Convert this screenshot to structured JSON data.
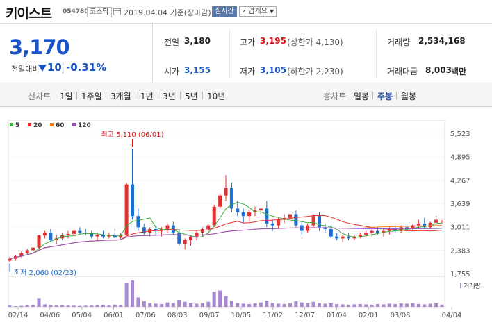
{
  "header": {
    "name": "키이스트",
    "code": "054780",
    "market": "코스닥",
    "date": "2019.04.04 기준(장마감)",
    "realtime": "실시간",
    "overview": "기업개요"
  },
  "summary": {
    "price": "3,170",
    "change_label": "전일대비",
    "change": "10",
    "change_pct": "-0.31%",
    "prev_label": "전일",
    "prev": "3,180",
    "open_label": "시가",
    "open": "3,155",
    "high_label": "고가",
    "high": "3,195",
    "upper_limit": "(상한가 4,130)",
    "low_label": "저가",
    "low": "3,105",
    "lower_limit": "(하한가 2,230)",
    "volume_label": "거래량",
    "volume": "2,534,168",
    "amount_label": "거래대금",
    "amount": "8,003",
    "amount_unit": "백만"
  },
  "toolbar": {
    "line_label": "선차트",
    "periods": [
      "1일",
      "1주일",
      "3개월",
      "1년",
      "3년",
      "5년",
      "10년"
    ],
    "candle_label": "봉차트",
    "candles": [
      "일봉",
      "주봉",
      "월봉"
    ],
    "active_candle": "주봉"
  },
  "colors": {
    "up": "#e03030",
    "down": "#1f6fd0",
    "ma5": "#3aa83a",
    "ma20": "#e03030",
    "ma60": "#f08020",
    "ma120": "#9050c0",
    "volume": "#a888d0"
  },
  "chart_data": {
    "type": "candlestick",
    "legend": [
      "5",
      "20",
      "60",
      "120"
    ],
    "y_ticks": [
      "5,523",
      "4,895",
      "4,267",
      "3,639",
      "3,011",
      "2,383",
      "1,755"
    ],
    "ylim": [
      1755,
      5523
    ],
    "x_ticks": [
      "02/14",
      "04/06",
      "05/04",
      "06/01",
      "07/06",
      "08/03",
      "09/07",
      "10/05",
      "11/02",
      "12/07",
      "01/04",
      "02/01",
      "03/08",
      "04/04"
    ],
    "annotations": {
      "high": "최고 5,110 (06/01)",
      "low": "최저 2,060 (02/23)"
    },
    "volume_label": "거래량",
    "candles": [
      [
        2100,
        2200,
        2060,
        2150
      ],
      [
        2150,
        2250,
        2100,
        2220
      ],
      [
        2220,
        2350,
        2180,
        2300
      ],
      [
        2300,
        2420,
        2250,
        2380
      ],
      [
        2380,
        2500,
        2300,
        2450
      ],
      [
        2450,
        2800,
        2400,
        2780
      ],
      [
        2780,
        2900,
        2700,
        2850
      ],
      [
        2850,
        2950,
        2600,
        2650
      ],
      [
        2650,
        2800,
        2550,
        2700
      ],
      [
        2700,
        2850,
        2650,
        2780
      ],
      [
        2780,
        2900,
        2700,
        2820
      ],
      [
        2820,
        2950,
        2750,
        2900
      ],
      [
        2900,
        3000,
        2800,
        2850
      ],
      [
        2850,
        2950,
        2780,
        2820
      ],
      [
        2820,
        2900,
        2700,
        2750
      ],
      [
        2750,
        2850,
        2650,
        2800
      ],
      [
        2800,
        2900,
        2700,
        2750
      ],
      [
        2750,
        2850,
        2700,
        2800
      ],
      [
        2800,
        2950,
        2700,
        2720
      ],
      [
        2720,
        2850,
        2650,
        2780
      ],
      [
        2780,
        4200,
        2750,
        4150
      ],
      [
        4150,
        5110,
        3200,
        3300
      ],
      [
        3300,
        3500,
        2900,
        3000
      ],
      [
        3000,
        3100,
        2800,
        2850
      ],
      [
        2850,
        3000,
        2750,
        2950
      ],
      [
        2950,
        3050,
        2800,
        2900
      ],
      [
        2900,
        3000,
        2750,
        2950
      ],
      [
        2950,
        3100,
        2850,
        3050
      ],
      [
        3050,
        3150,
        2800,
        2850
      ],
      [
        2850,
        2950,
        2500,
        2550
      ],
      [
        2550,
        2700,
        2400,
        2650
      ],
      [
        2650,
        2800,
        2500,
        2750
      ],
      [
        2750,
        2900,
        2650,
        2850
      ],
      [
        2850,
        3000,
        2750,
        2950
      ],
      [
        2950,
        3100,
        2800,
        3050
      ],
      [
        3050,
        3600,
        3000,
        3550
      ],
      [
        3550,
        3900,
        3500,
        3850
      ],
      [
        3850,
        4400,
        3700,
        4050
      ],
      [
        4050,
        4200,
        3400,
        3500
      ],
      [
        3500,
        3700,
        3300,
        3400
      ],
      [
        3400,
        3500,
        3100,
        3300
      ],
      [
        3300,
        3450,
        3150,
        3400
      ],
      [
        3400,
        3550,
        3300,
        3450
      ],
      [
        3450,
        3600,
        3350,
        3500
      ],
      [
        3500,
        3700,
        3000,
        3100
      ],
      [
        3100,
        3200,
        2900,
        3050
      ],
      [
        3050,
        3250,
        2950,
        3200
      ],
      [
        3200,
        3350,
        3100,
        3250
      ],
      [
        3250,
        3400,
        3200,
        3350
      ],
      [
        3350,
        3450,
        3000,
        3050
      ],
      [
        3050,
        3150,
        2800,
        2900
      ],
      [
        2900,
        3100,
        2850,
        3050
      ],
      [
        3050,
        3350,
        3000,
        3300
      ],
      [
        3300,
        3400,
        2900,
        3000
      ],
      [
        3000,
        3100,
        2850,
        2950
      ],
      [
        2950,
        3050,
        2700,
        2750
      ],
      [
        2750,
        2850,
        2650,
        2700
      ],
      [
        2700,
        2800,
        2600,
        2750
      ],
      [
        2750,
        2850,
        2650,
        2700
      ],
      [
        2700,
        2800,
        2650,
        2750
      ],
      [
        2750,
        2850,
        2700,
        2800
      ],
      [
        2800,
        2900,
        2750,
        2850
      ],
      [
        2850,
        2950,
        2750,
        2900
      ],
      [
        2900,
        3000,
        2800,
        2850
      ],
      [
        2850,
        2950,
        2750,
        2900
      ],
      [
        2900,
        3000,
        2800,
        2950
      ],
      [
        2950,
        3050,
        2850,
        2900
      ],
      [
        2900,
        3050,
        2850,
        3000
      ],
      [
        3000,
        3100,
        2900,
        2950
      ],
      [
        2950,
        3100,
        2900,
        3050
      ],
      [
        3050,
        3200,
        2950,
        3100
      ],
      [
        3100,
        3250,
        2950,
        3000
      ],
      [
        3000,
        3150,
        2950,
        3120
      ],
      [
        3120,
        3300,
        3050,
        3200
      ],
      [
        3155,
        3195,
        3105,
        3170
      ]
    ],
    "volumes": [
      20,
      10,
      15,
      25,
      30,
      140,
      40,
      30,
      20,
      25,
      20,
      18,
      15,
      18,
      20,
      25,
      30,
      20,
      35,
      25,
      380,
      420,
      150,
      90,
      60,
      50,
      45,
      70,
      60,
      110,
      80,
      55,
      50,
      60,
      80,
      240,
      260,
      170,
      90,
      60,
      50,
      45,
      55,
      70,
      100,
      60,
      50,
      45,
      60,
      90,
      70,
      55,
      80,
      60,
      50,
      55,
      45,
      40,
      35,
      40,
      45,
      40,
      35,
      45,
      40,
      50,
      45,
      55,
      50,
      60,
      45,
      40,
      50,
      55,
      35
    ]
  }
}
